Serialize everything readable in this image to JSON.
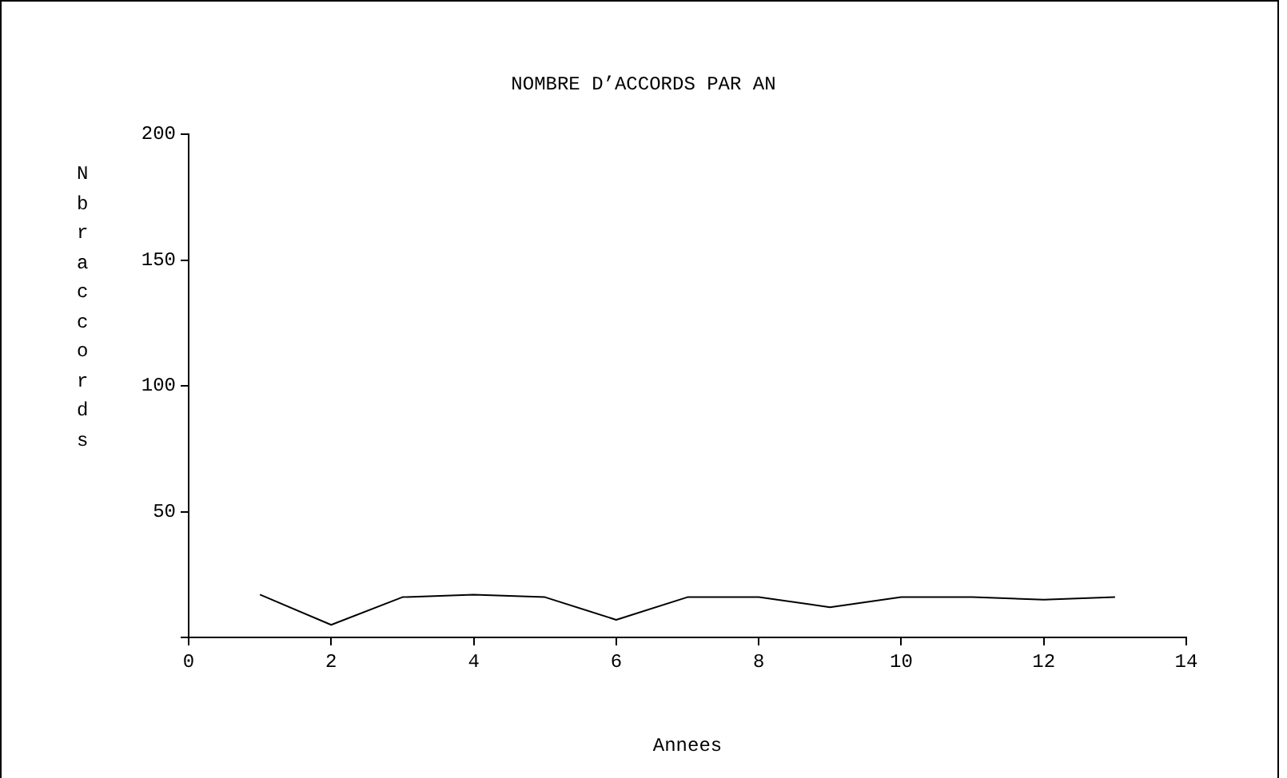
{
  "chart_data": {
    "type": "line",
    "title": "NOMBRE D’ACCORDS PAR AN",
    "xlabel": "Annees",
    "ylabel": "Nbr accords",
    "x": [
      1,
      2,
      3,
      4,
      5,
      6,
      7,
      8,
      9,
      10,
      11,
      12,
      13
    ],
    "series": [
      {
        "color": "#000000",
        "values": [
          17,
          5,
          16,
          17,
          16,
          7,
          16,
          16,
          12,
          16,
          16,
          15,
          16
        ]
      }
    ],
    "xlim": [
      0,
      14
    ],
    "xticks": [
      0,
      2,
      4,
      6,
      8,
      10,
      12,
      14
    ],
    "ylim": [
      0,
      200
    ],
    "yticks": [
      {
        "value": 0,
        "label": null
      },
      50,
      100,
      150,
      200
    ],
    "grid": false,
    "legend": false,
    "marker": "none",
    "line_style": "solid"
  }
}
